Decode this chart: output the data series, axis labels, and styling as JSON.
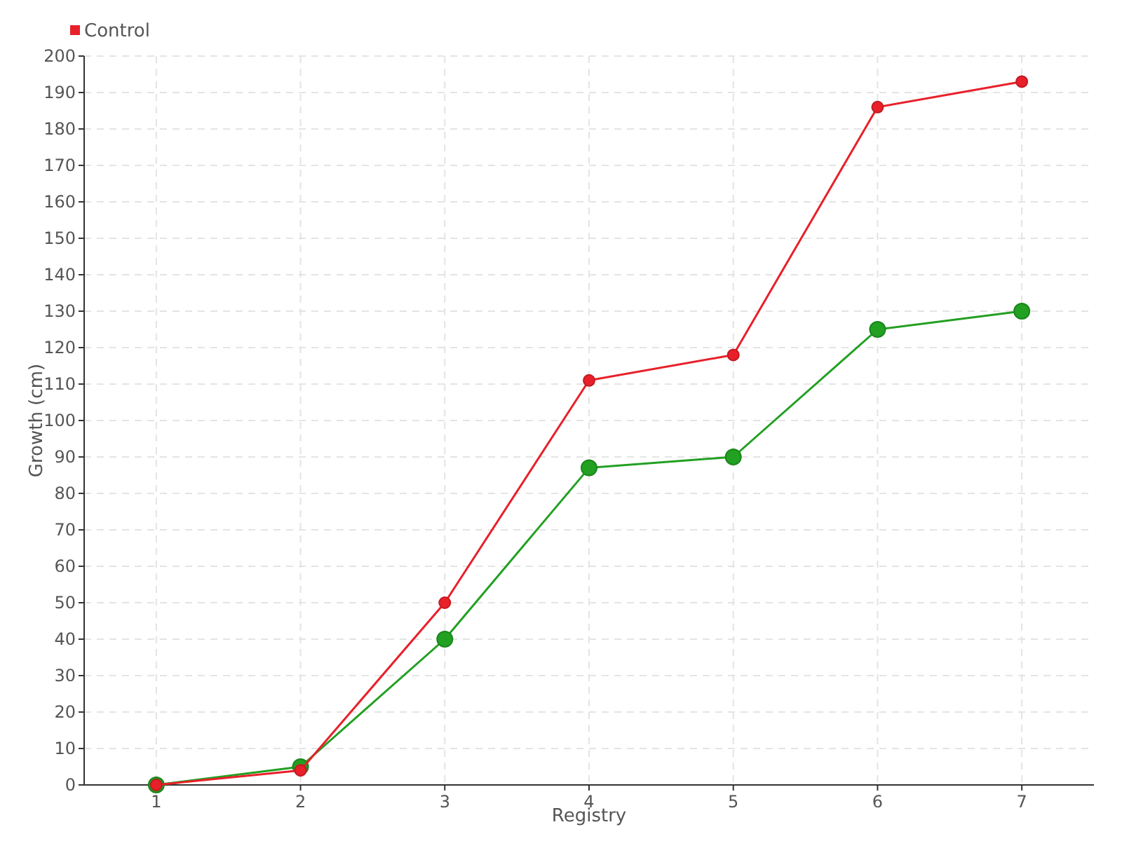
{
  "chart_data": {
    "type": "line",
    "xlabel": "Registry",
    "ylabel": "Growth (cm)",
    "x": [
      1,
      2,
      3,
      4,
      5,
      6,
      7
    ],
    "series": [
      {
        "color": "#22a022",
        "values": [
          0,
          5,
          40,
          87,
          90,
          125,
          130
        ]
      },
      {
        "name": "Control",
        "color": "#e8202a",
        "values": [
          0,
          4,
          50,
          111,
          118,
          186,
          193
        ]
      }
    ],
    "xlim": [
      0.5,
      7.5
    ],
    "xticks": [
      1,
      2,
      3,
      4,
      5,
      6,
      7
    ],
    "ylim": [
      0,
      200
    ],
    "yticks": [
      0,
      10,
      20,
      30,
      40,
      50,
      60,
      70,
      80,
      90,
      100,
      110,
      120,
      130,
      140,
      150,
      160,
      170,
      180,
      190,
      200
    ],
    "grid": true,
    "legend": "top left",
    "marker": "circle",
    "line_style": "solid"
  }
}
